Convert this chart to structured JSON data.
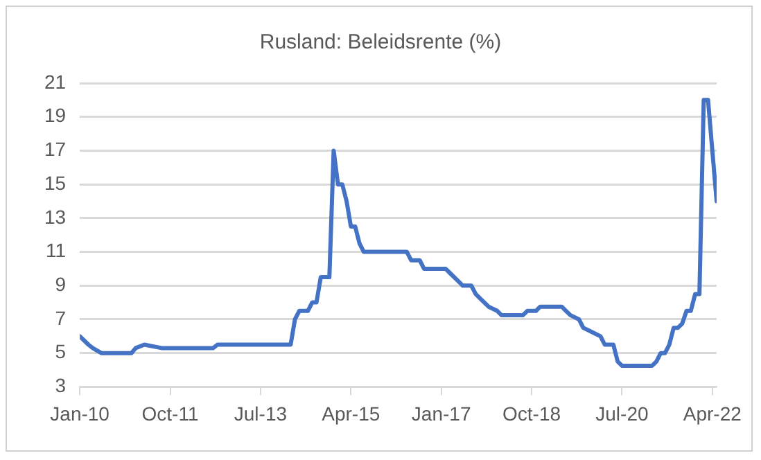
{
  "chart_data": {
    "type": "line",
    "title": "Rusland: Beleidsrente (%)",
    "x": [
      "2010-01",
      "2010-03",
      "2010-04",
      "2010-06",
      "2011-01",
      "2011-02",
      "2011-04",
      "2011-08",
      "2012-08",
      "2012-09",
      "2014-02",
      "2014-03",
      "2014-04",
      "2014-06",
      "2014-07",
      "2014-08",
      "2014-09",
      "2014-11",
      "2014-12",
      "2015-01",
      "2015-02",
      "2015-03",
      "2015-04",
      "2015-05",
      "2015-06",
      "2015-07",
      "2016-05",
      "2016-06",
      "2016-08",
      "2016-09",
      "2017-02",
      "2017-03",
      "2017-05",
      "2017-06",
      "2017-08",
      "2017-09",
      "2017-10",
      "2017-12",
      "2018-02",
      "2018-03",
      "2018-08",
      "2018-09",
      "2018-11",
      "2018-12",
      "2019-05",
      "2019-06",
      "2019-07",
      "2019-09",
      "2019-10",
      "2019-12",
      "2020-02",
      "2020-03",
      "2020-05",
      "2020-06",
      "2020-07",
      "2021-02",
      "2021-03",
      "2021-04",
      "2021-05",
      "2021-06",
      "2021-07",
      "2021-08",
      "2021-09",
      "2021-10",
      "2021-11",
      "2021-12",
      "2022-01",
      "2022-02",
      "2022-03",
      "2022-04",
      "2022-05"
    ],
    "series": [
      {
        "color": "#4472c4",
        "values": [
          6,
          5.5,
          5.3,
          5,
          5,
          5.3,
          5.5,
          5.3,
          5.3,
          5.5,
          5.5,
          7,
          7.5,
          7.5,
          8,
          8,
          9.5,
          9.5,
          17,
          15,
          15,
          14,
          12.5,
          12.5,
          11.5,
          11,
          11,
          10.5,
          10.5,
          10,
          10,
          9.75,
          9.25,
          9,
          9,
          8.5,
          8.25,
          7.75,
          7.5,
          7.25,
          7.25,
          7.5,
          7.5,
          7.75,
          7.75,
          7.5,
          7.25,
          7,
          6.5,
          6.25,
          6,
          5.5,
          5.5,
          4.5,
          4.25,
          4.25,
          4.5,
          5,
          5,
          5.5,
          6.5,
          6.5,
          6.75,
          7.5,
          7.5,
          8.5,
          8.5,
          20,
          20,
          17,
          14
        ]
      }
    ],
    "xlim": [
      "2010-01",
      "2022-05"
    ],
    "xticks": [
      {
        "value": "2010-01",
        "label": "Jan-10"
      },
      {
        "value": "2011-10",
        "label": "Oct-11"
      },
      {
        "value": "2013-07",
        "label": "Jul-13"
      },
      {
        "value": "2015-04",
        "label": "Apr-15"
      },
      {
        "value": "2017-01",
        "label": "Jan-17"
      },
      {
        "value": "2018-10",
        "label": "Oct-18"
      },
      {
        "value": "2020-07",
        "label": "Jul-20"
      },
      {
        "value": "2022-04",
        "label": "Apr-22"
      }
    ],
    "ylim": [
      3,
      21
    ],
    "yticks": [
      3,
      5,
      7,
      9,
      11,
      13,
      15,
      17,
      19,
      21
    ],
    "grid": "y",
    "legend": false
  }
}
